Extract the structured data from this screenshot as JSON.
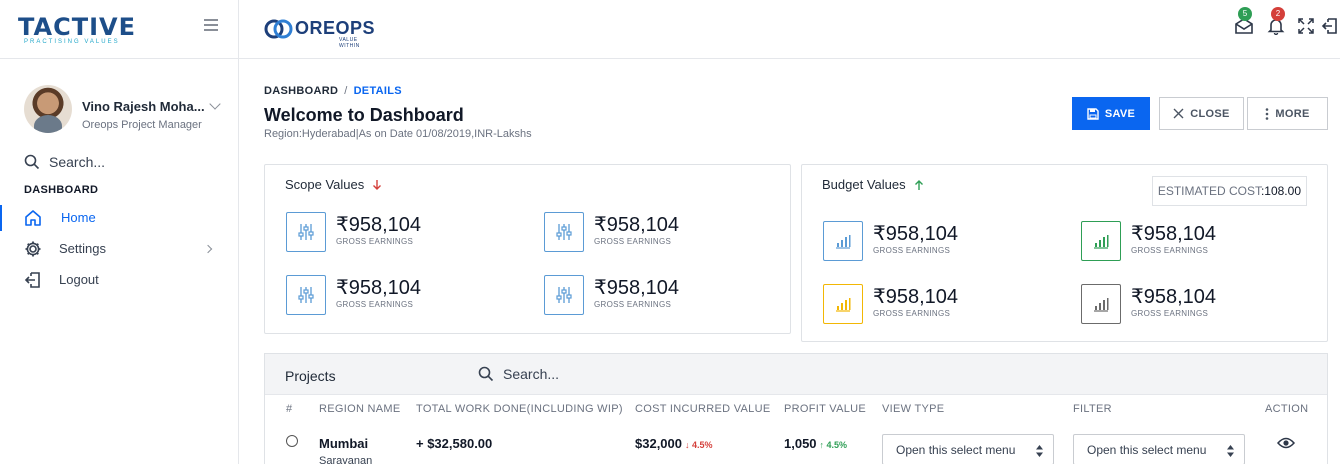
{
  "sidebar": {
    "brand": "TACTIVE",
    "brand_tagline": "PRACTISING VALUES",
    "profile": {
      "name": "Vino Rajesh Moha...",
      "role": "Oreops Project Manager"
    },
    "search_placeholder": "Search...",
    "section_label": "DASHBOARD",
    "items": [
      {
        "label": "Home",
        "icon": "home-icon",
        "active": true
      },
      {
        "label": "Settings",
        "icon": "gear-icon",
        "active": false
      },
      {
        "label": "Logout",
        "icon": "logout-icon",
        "active": false
      }
    ]
  },
  "topbar": {
    "logo_text": "OREOPS",
    "logo_tagline": "VALUE WITHIN",
    "mail_badge": "5",
    "bell_badge": "2"
  },
  "page": {
    "breadcrumb": [
      "DASHBOARD",
      "DETAILS"
    ],
    "title": "Welcome to Dashboard",
    "subtitle": "Region:Hyderabad|As on Date 01/08/2019,INR-Lakshs"
  },
  "actions": {
    "save": "SAVE",
    "close": "CLOSE",
    "more": "MORE"
  },
  "scope": {
    "title": "Scope Values",
    "stats": [
      {
        "value": "₹958,104",
        "label": "GROSS EARNINGS"
      },
      {
        "value": "₹958,104",
        "label": "GROSS EARNINGS"
      },
      {
        "value": "₹958,104",
        "label": "GROSS EARNINGS"
      },
      {
        "value": "₹958,104",
        "label": "GROSS EARNINGS"
      }
    ]
  },
  "budget": {
    "title": "Budget Values",
    "estimated_label": "ESTIMATED COST",
    "estimated_value": ":108.00",
    "stats": [
      {
        "value": "₹958,104",
        "label": "GROSS EARNINGS",
        "color": "#5b9bd5"
      },
      {
        "value": "₹958,104",
        "label": "GROSS EARNINGS",
        "color": "#2e9e55"
      },
      {
        "value": "₹958,104",
        "label": "GROSS EARNINGS",
        "color": "#f2b705"
      },
      {
        "value": "₹958,104",
        "label": "GROSS EARNINGS",
        "color": "#6b6b6b"
      }
    ]
  },
  "projects": {
    "title": "Projects",
    "search_placeholder": "Search...",
    "columns": [
      "#",
      "REGION NAME",
      "TOTAL WORK DONE(INCLUDING WIP)",
      "COST INCURRED VALUE",
      "PROFIT VALUE",
      "VIEW TYPE",
      "FILTER",
      "ACTION"
    ],
    "rows": [
      {
        "region": "Mumbai",
        "person": "Saravanan",
        "total_work": "+ $32,580.00",
        "cost": "$32,000",
        "cost_delta": "↓ 4.5%",
        "profit": "1,050",
        "profit_delta": "↑ 4.5%",
        "view_type": "Open this select menu",
        "filter": "Open this select menu"
      }
    ]
  },
  "colors": {
    "primary": "#0a66f0",
    "up": "#2e9e55",
    "down": "#d43f3a"
  }
}
